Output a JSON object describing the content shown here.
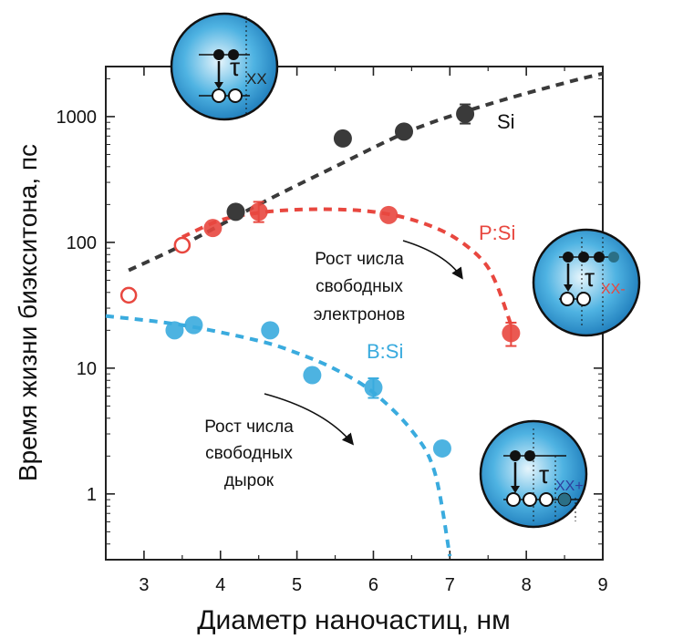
{
  "chart_data": {
    "type": "scatter",
    "xlabel": "Диаметр наночастиц, нм",
    "ylabel": "Время жизни биэкситона, пс",
    "xlim": [
      2.5,
      9
    ],
    "ylim": [
      0.3,
      2500
    ],
    "yscale": "log",
    "x_ticks": [
      3,
      4,
      5,
      6,
      7,
      8,
      9
    ],
    "y_ticks": [
      {
        "value": 1,
        "label": "1"
      },
      {
        "value": 10,
        "label": "10"
      },
      {
        "value": 100,
        "label": "100"
      },
      {
        "value": 1000,
        "label": "1000"
      }
    ],
    "series": [
      {
        "name": "Si",
        "color": "#3a3a3a",
        "points": [
          {
            "x": 4.2,
            "y": 175
          },
          {
            "x": 5.6,
            "y": 670
          },
          {
            "x": 6.4,
            "y": 760
          },
          {
            "x": 7.2,
            "y": 1050,
            "yerr_low": 880,
            "yerr_high": 1250
          }
        ],
        "fit": [
          [
            2.8,
            60
          ],
          [
            3.5,
            95
          ],
          [
            4.5,
            200
          ],
          [
            5.5,
            400
          ],
          [
            6.5,
            780
          ],
          [
            7.5,
            1250
          ],
          [
            8.5,
            1850
          ],
          [
            9,
            2200
          ]
        ]
      },
      {
        "name": "P:Si",
        "color": "#e8473f",
        "points": [
          {
            "x": 2.8,
            "y": 38,
            "open": true
          },
          {
            "x": 3.5,
            "y": 95,
            "open": true
          },
          {
            "x": 3.9,
            "y": 130
          },
          {
            "x": 4.5,
            "y": 175,
            "yerr_low": 145,
            "yerr_high": 210
          },
          {
            "x": 6.2,
            "y": 165
          },
          {
            "x": 7.8,
            "y": 19,
            "yerr_low": 15,
            "yerr_high": 23
          }
        ],
        "fit": [
          [
            3.5,
            110
          ],
          [
            4.0,
            150
          ],
          [
            4.5,
            172
          ],
          [
            5.0,
            182
          ],
          [
            5.5,
            183
          ],
          [
            6.0,
            175
          ],
          [
            6.5,
            152
          ],
          [
            7.0,
            115
          ],
          [
            7.4,
            75
          ],
          [
            7.6,
            48
          ],
          [
            7.8,
            22
          ]
        ]
      },
      {
        "name": "B:Si",
        "color": "#3aabde",
        "points": [
          {
            "x": 3.4,
            "y": 20
          },
          {
            "x": 3.65,
            "y": 22
          },
          {
            "x": 4.65,
            "y": 20
          },
          {
            "x": 5.2,
            "y": 8.8
          },
          {
            "x": 6.0,
            "y": 7.0,
            "yerr_low": 5.8,
            "yerr_high": 8.3
          },
          {
            "x": 6.9,
            "y": 2.3
          }
        ],
        "fit": [
          [
            2.5,
            26
          ],
          [
            3.5,
            22
          ],
          [
            4.5,
            16.5
          ],
          [
            5.0,
            13.2
          ],
          [
            5.5,
            9.8
          ],
          [
            6.0,
            6.4
          ],
          [
            6.5,
            3.2
          ],
          [
            6.8,
            1.5
          ],
          [
            7.0,
            0.32
          ]
        ]
      }
    ],
    "annotations": [
      {
        "lines": [
          "Рост числа",
          "свободных",
          "электронов"
        ]
      },
      {
        "lines": [
          "Рост числа",
          "свободных",
          "дырок"
        ]
      }
    ],
    "insets": [
      {
        "label": "τ",
        "sub": "XX",
        "sub_color": "#222222"
      },
      {
        "label": "τ",
        "sub": "XX-",
        "sub_color": "#e8473f"
      },
      {
        "label": "τ",
        "sub": "XX+",
        "sub_color": "#2e3f9e"
      }
    ]
  }
}
